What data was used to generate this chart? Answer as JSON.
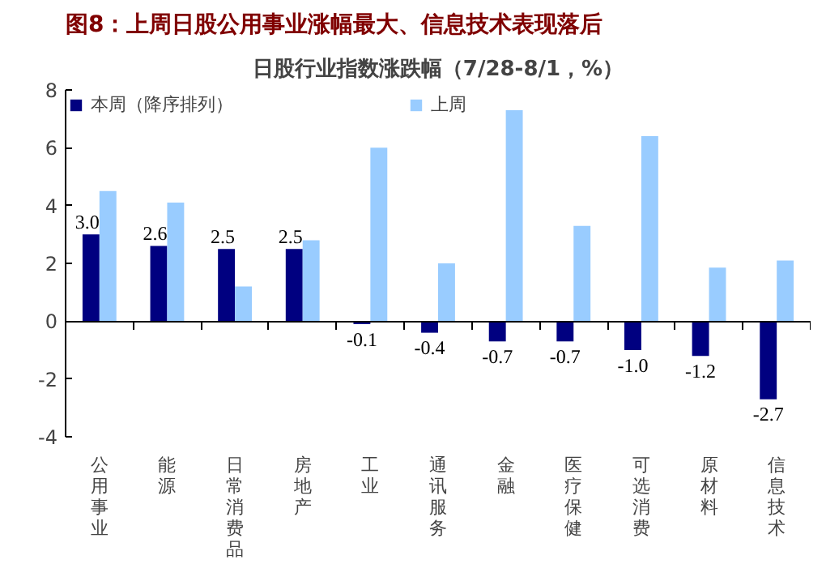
{
  "chart_data": {
    "type": "bar",
    "title": "图8：上周日股公用事业涨幅最大、信息技术表现落后",
    "subtitle": "日股行业指数涨跌幅（7/28-8/1，%）",
    "categories": [
      "公用事业",
      "能源",
      "日常消费品",
      "房地产",
      "工业",
      "通讯服务",
      "金融",
      "医疗保健",
      "可选消费",
      "原材料",
      "信息技术"
    ],
    "series": [
      {
        "name": "本周（降序排列）",
        "color": "#000080",
        "values": [
          3.0,
          2.6,
          2.5,
          2.5,
          -0.1,
          -0.4,
          -0.7,
          -0.7,
          -1.0,
          -1.2,
          -2.7
        ],
        "value_labels": [
          "3.0",
          "2.6",
          "2.5",
          "2.5",
          "-0.1",
          "-0.4",
          "-0.7",
          "-0.7",
          "-1.0",
          "-1.2",
          "-2.7"
        ]
      },
      {
        "name": "上周",
        "color": "#99ccff",
        "values": [
          4.5,
          4.1,
          1.2,
          2.8,
          6.0,
          2.0,
          7.3,
          3.3,
          6.4,
          1.85,
          2.1
        ]
      }
    ],
    "ylim": [
      -4,
      8
    ],
    "yticks": [
      -4,
      -2,
      0,
      2,
      4,
      6,
      8
    ],
    "legend": "top"
  }
}
